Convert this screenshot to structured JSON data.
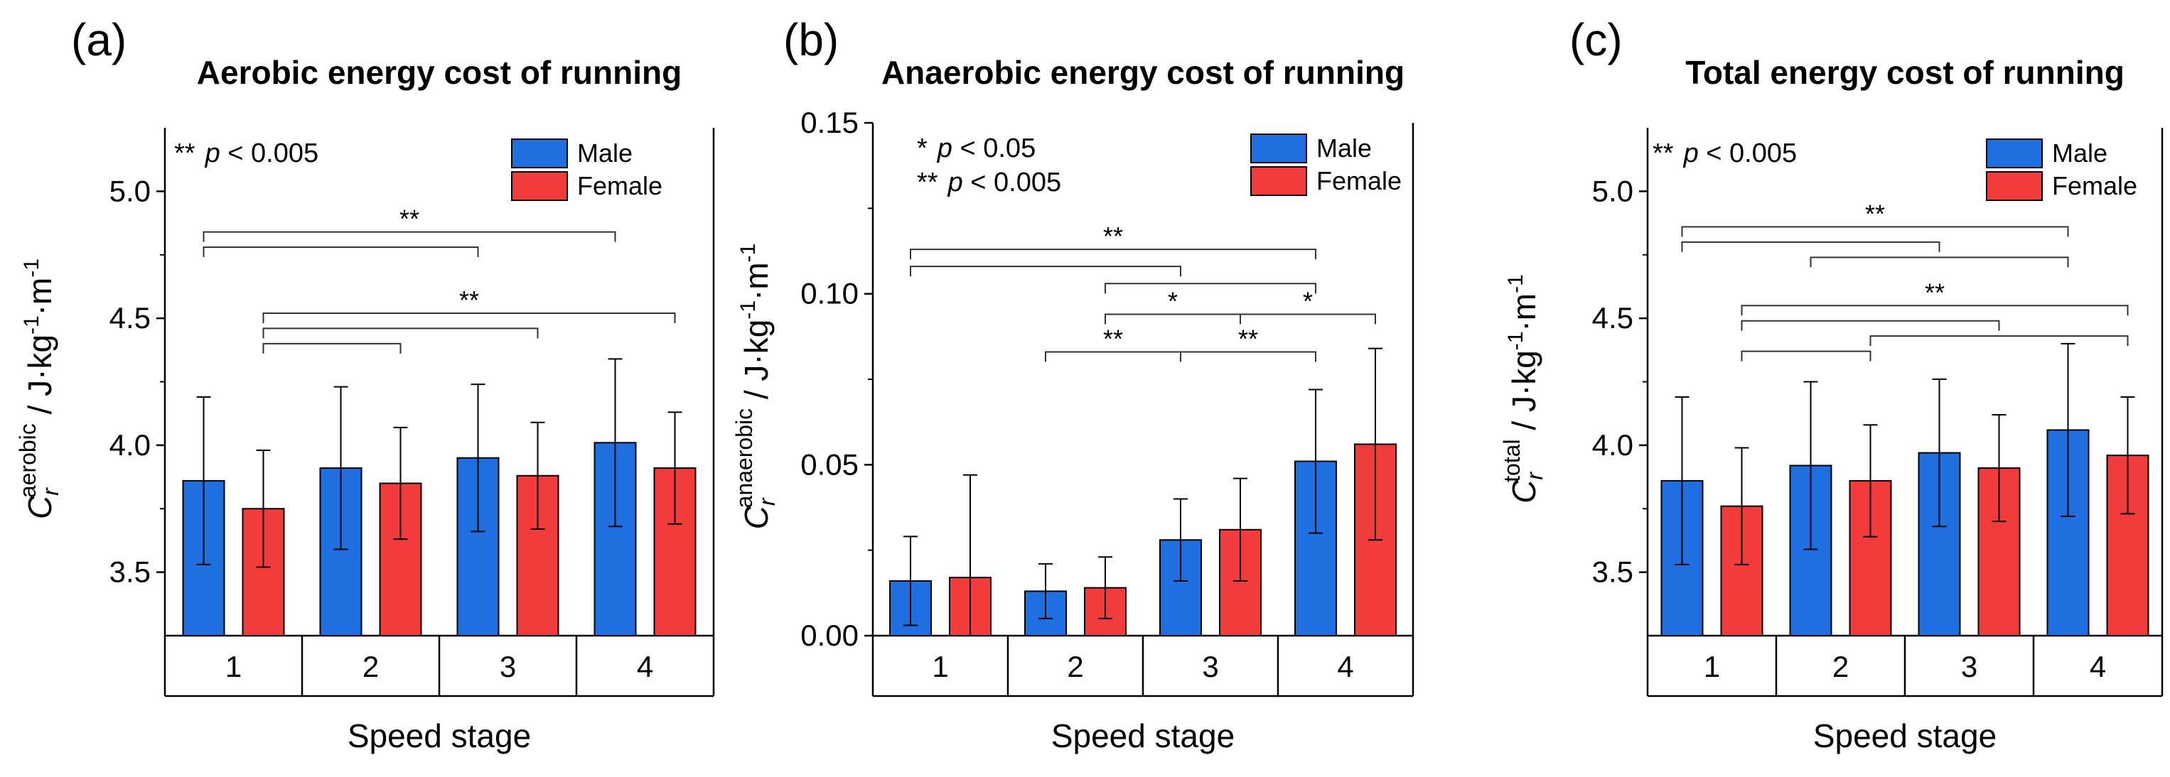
{
  "colors": {
    "male": "#1f6fe0",
    "female": "#f23c3c"
  },
  "chart_data": [
    {
      "panel_label": "(a)",
      "type": "bar",
      "title": "Aerobic energy cost of running",
      "ylabel_main": "C",
      "ylabel_sub": "r",
      "ylabel_sup": "aerobic",
      "ylabel_units": [
        " / J·kg",
        "-1",
        "·m",
        "-1"
      ],
      "xlabel": "Speed stage",
      "categories": [
        "1",
        "2",
        "3",
        "4"
      ],
      "ylim": [
        3.25,
        5.25
      ],
      "yticks": [
        3.5,
        4.0,
        4.5,
        5.0
      ],
      "ytick_labels": [
        "3.5",
        "4.0",
        "4.5",
        "5.0"
      ],
      "series": [
        {
          "name": "Male",
          "values": [
            3.86,
            3.91,
            3.95,
            4.01
          ],
          "errors": [
            0.33,
            0.32,
            0.29,
            0.33
          ]
        },
        {
          "name": "Female",
          "values": [
            3.75,
            3.85,
            3.88,
            3.91
          ],
          "errors": [
            0.23,
            0.22,
            0.21,
            0.22
          ]
        }
      ],
      "annotation_lines": [
        {
          "star": "**",
          "sym": "p",
          "rest": " < 0.005"
        }
      ],
      "brackets": [
        {
          "from": "1M",
          "to": "4M",
          "y": 4.84,
          "label": "**"
        },
        {
          "from": "1M",
          "to": "3M",
          "y": 4.78,
          "label": ""
        },
        {
          "from": "1F",
          "to": "4F",
          "y": 4.52,
          "label": "**"
        },
        {
          "from": "1F",
          "to": "3F",
          "y": 4.46,
          "label": ""
        },
        {
          "from": "1F",
          "to": "2F",
          "y": 4.4,
          "label": ""
        }
      ]
    },
    {
      "panel_label": "(b)",
      "type": "bar",
      "title": "Anaerobic energy cost of running",
      "ylabel_main": "C",
      "ylabel_sub": "r",
      "ylabel_sup": "anaerobic",
      "ylabel_units": [
        " / J·kg",
        "-1",
        "·m",
        "-1"
      ],
      "xlabel": "Speed stage",
      "categories": [
        "1",
        "2",
        "3",
        "4"
      ],
      "ylim": [
        0,
        0.15
      ],
      "yticks": [
        0,
        0.05,
        0.1,
        0.15
      ],
      "ytick_labels": [
        "0.00",
        "0.05",
        "0.10",
        "0.15"
      ],
      "series": [
        {
          "name": "Male",
          "values": [
            0.016,
            0.013,
            0.028,
            0.051
          ],
          "errors": [
            0.013,
            0.008,
            0.012,
            0.021
          ]
        },
        {
          "name": "Female",
          "values": [
            0.017,
            0.014,
            0.031,
            0.056
          ],
          "errors": [
            0.03,
            0.009,
            0.015,
            0.028
          ]
        }
      ],
      "annotation_lines": [
        {
          "star": "*",
          "sym": "p",
          "rest": " < 0.05"
        },
        {
          "star": "**",
          "sym": "p",
          "rest": " < 0.005"
        }
      ],
      "brackets": [
        {
          "from": "1M",
          "to": "4M",
          "y": 0.113,
          "label": "**"
        },
        {
          "from": "1M",
          "to": "3M",
          "y": 0.108,
          "label": ""
        },
        {
          "from": "2F",
          "to": "4M",
          "y": 0.103,
          "label": ""
        },
        {
          "from": "2F",
          "to": "3F",
          "y": 0.094,
          "label": "*"
        },
        {
          "from": "3F",
          "to": "4F",
          "y": 0.094,
          "label": "*"
        },
        {
          "from": "2M",
          "to": "3M",
          "y": 0.083,
          "label": "**"
        },
        {
          "from": "3M",
          "to": "4M",
          "y": 0.083,
          "label": "**"
        }
      ]
    },
    {
      "panel_label": "(c)",
      "type": "bar",
      "title": "Total energy cost of running",
      "ylabel_main": "C",
      "ylabel_sub": "r",
      "ylabel_sup": "total",
      "ylabel_units": [
        " / J·kg",
        "-1",
        "·m",
        "-1"
      ],
      "xlabel": "Speed stage",
      "categories": [
        "1",
        "2",
        "3",
        "4"
      ],
      "ylim": [
        3.25,
        5.25
      ],
      "yticks": [
        3.5,
        4.0,
        4.5,
        5.0
      ],
      "ytick_labels": [
        "3.5",
        "4.0",
        "4.5",
        "5.0"
      ],
      "series": [
        {
          "name": "Male",
          "values": [
            3.86,
            3.92,
            3.97,
            4.06
          ],
          "errors": [
            0.33,
            0.33,
            0.29,
            0.34
          ]
        },
        {
          "name": "Female",
          "values": [
            3.76,
            3.86,
            3.91,
            3.96
          ],
          "errors": [
            0.23,
            0.22,
            0.21,
            0.23
          ]
        }
      ],
      "annotation_lines": [
        {
          "star": "**",
          "sym": "p",
          "rest": " < 0.005"
        }
      ],
      "brackets": [
        {
          "from": "1M",
          "to": "4M",
          "y": 4.86,
          "label": "**"
        },
        {
          "from": "1M",
          "to": "3M",
          "y": 4.8,
          "label": ""
        },
        {
          "from": "2M",
          "to": "4M",
          "y": 4.74,
          "label": ""
        },
        {
          "from": "1F",
          "to": "4F",
          "y": 4.55,
          "label": "**"
        },
        {
          "from": "1F",
          "to": "3F",
          "y": 4.49,
          "label": ""
        },
        {
          "from": "2F",
          "to": "4F",
          "y": 4.43,
          "label": ""
        },
        {
          "from": "1F",
          "to": "2F",
          "y": 4.37,
          "label": ""
        }
      ]
    }
  ]
}
